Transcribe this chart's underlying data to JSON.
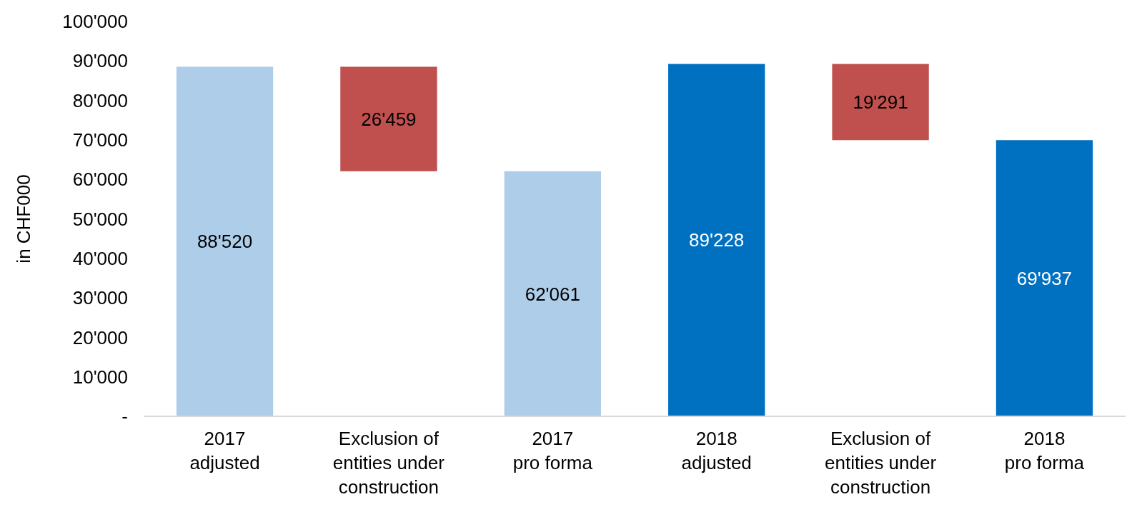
{
  "chart_data": {
    "type": "bar",
    "ylabel": "in CHF000",
    "categories": [
      "2017\nadjusted",
      "Exclusion of\nentities under\nconstruction",
      "2017\npro forma",
      "2018\nadjusted",
      "Exclusion of\nentities under\nconstruction",
      "2018\npro forma"
    ],
    "values": [
      88520,
      26459,
      62061,
      89228,
      19291,
      69937
    ],
    "base": [
      0,
      62061,
      0,
      0,
      69937,
      0
    ],
    "colors": [
      "#aecde9",
      "#c0504d",
      "#aecde9",
      "#0070c0",
      "#c0504d",
      "#0070c0"
    ],
    "value_labels": [
      "88'520",
      "26'459",
      "62'061",
      "89'228",
      "19'291",
      "69'937"
    ],
    "ylim": [
      0,
      100000
    ],
    "yticks": [
      {
        "value": 0,
        "label": "-"
      },
      {
        "value": 10000,
        "label": "10'000"
      },
      {
        "value": 20000,
        "label": "20'000"
      },
      {
        "value": 30000,
        "label": "30'000"
      },
      {
        "value": 40000,
        "label": "40'000"
      },
      {
        "value": 50000,
        "label": "50'000"
      },
      {
        "value": 60000,
        "label": "60'000"
      },
      {
        "value": 70000,
        "label": "70'000"
      },
      {
        "value": 80000,
        "label": "80'000"
      },
      {
        "value": 90000,
        "label": "90'000"
      },
      {
        "value": 100000,
        "label": "100'000"
      }
    ],
    "grid": false
  }
}
